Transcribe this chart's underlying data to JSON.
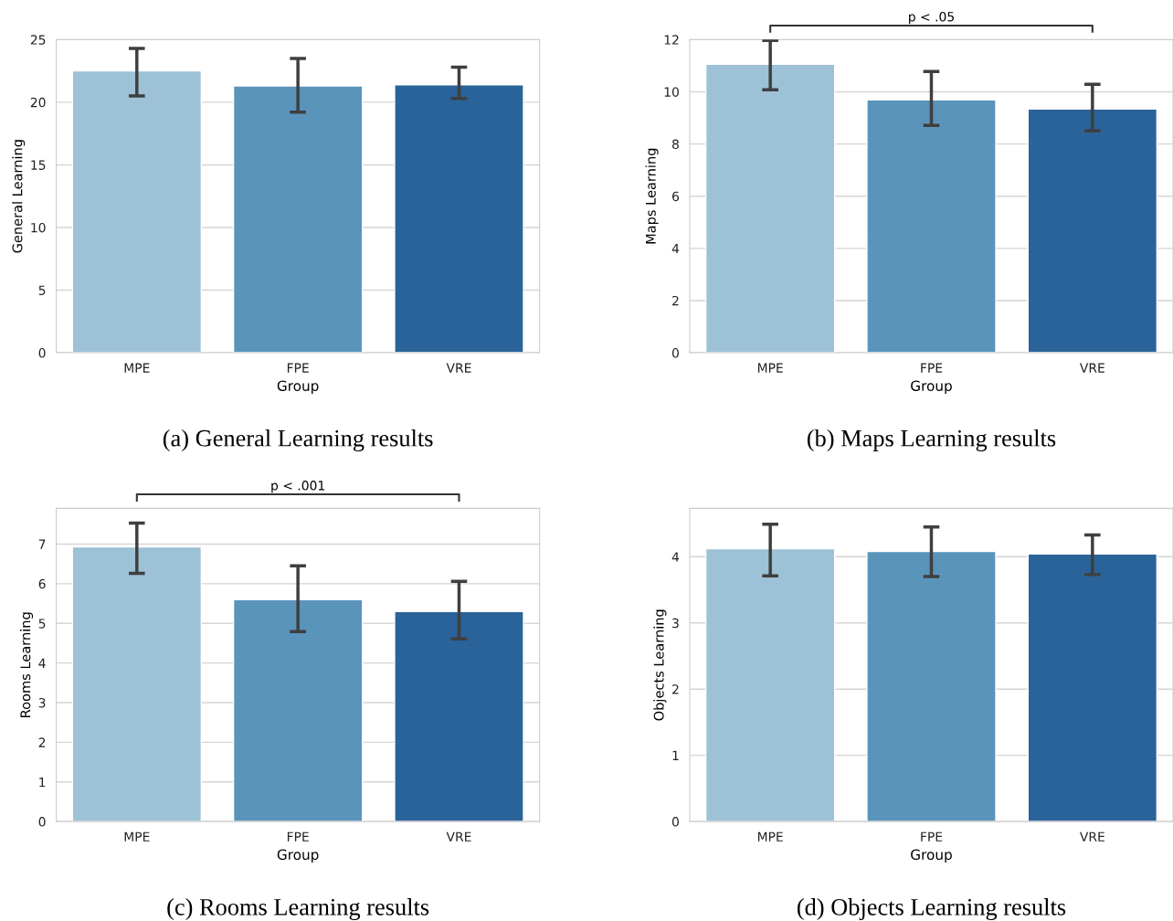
{
  "chart_data": [
    {
      "type": "bar",
      "title": "(a) General Learning results",
      "xlabel": "Group",
      "ylabel": "General Learning",
      "categories": [
        "MPE",
        "FPE",
        "VRE"
      ],
      "values": [
        22.5,
        21.3,
        21.4
      ],
      "colors": [
        "#9dc1d6",
        "#5a94bb",
        "#2a6399"
      ],
      "errors": [
        [
          20.5,
          24.3
        ],
        [
          19.2,
          23.5
        ],
        [
          20.3,
          22.8
        ]
      ],
      "ylim": [
        0,
        25
      ],
      "yticks": [
        0,
        5,
        10,
        15,
        20,
        25
      ],
      "grid": "y"
    },
    {
      "type": "bar",
      "title": "(b) Maps Learning results",
      "xlabel": "Group",
      "ylabel": "Maps Learning",
      "categories": [
        "MPE",
        "FPE",
        "VRE"
      ],
      "values": [
        11.06,
        9.69,
        9.34
      ],
      "colors": [
        "#9dc1d6",
        "#5a94bb",
        "#2a6399"
      ],
      "errors": [
        [
          10.08,
          11.97
        ],
        [
          8.71,
          10.78
        ],
        [
          8.5,
          10.29
        ]
      ],
      "ylim": [
        0,
        12
      ],
      "yticks": [
        0,
        2,
        4,
        6,
        8,
        10,
        12
      ],
      "grid": "y",
      "annotations": [
        "p < .05"
      ]
    },
    {
      "type": "bar",
      "title": "(c) Rooms Learning results",
      "xlabel": "Group",
      "ylabel": "Rooms Learning",
      "categories": [
        "MPE",
        "FPE",
        "VRE"
      ],
      "values": [
        6.93,
        5.6,
        5.3
      ],
      "colors": [
        "#9dc1d6",
        "#5a94bb",
        "#2a6399"
      ],
      "errors": [
        [
          6.26,
          7.53
        ],
        [
          4.79,
          6.45
        ],
        [
          4.61,
          6.06
        ]
      ],
      "ylim": [
        0,
        7.9
      ],
      "yticks": [
        0,
        1,
        2,
        3,
        4,
        5,
        6,
        7
      ],
      "grid": "y",
      "annotations": [
        "p < .001"
      ]
    },
    {
      "type": "bar",
      "title": "(d) Objects Learning results",
      "xlabel": "Group",
      "ylabel": "Objects Learning",
      "categories": [
        "MPE",
        "FPE",
        "VRE"
      ],
      "values": [
        4.12,
        4.08,
        4.04
      ],
      "colors": [
        "#9dc1d6",
        "#5a94bb",
        "#2a6399"
      ],
      "errors": [
        [
          3.71,
          4.49
        ],
        [
          3.7,
          4.45
        ],
        [
          3.73,
          4.33
        ]
      ],
      "ylim": [
        0,
        4.73
      ],
      "yticks": [
        0,
        1,
        2,
        3,
        4
      ],
      "grid": "y"
    }
  ]
}
